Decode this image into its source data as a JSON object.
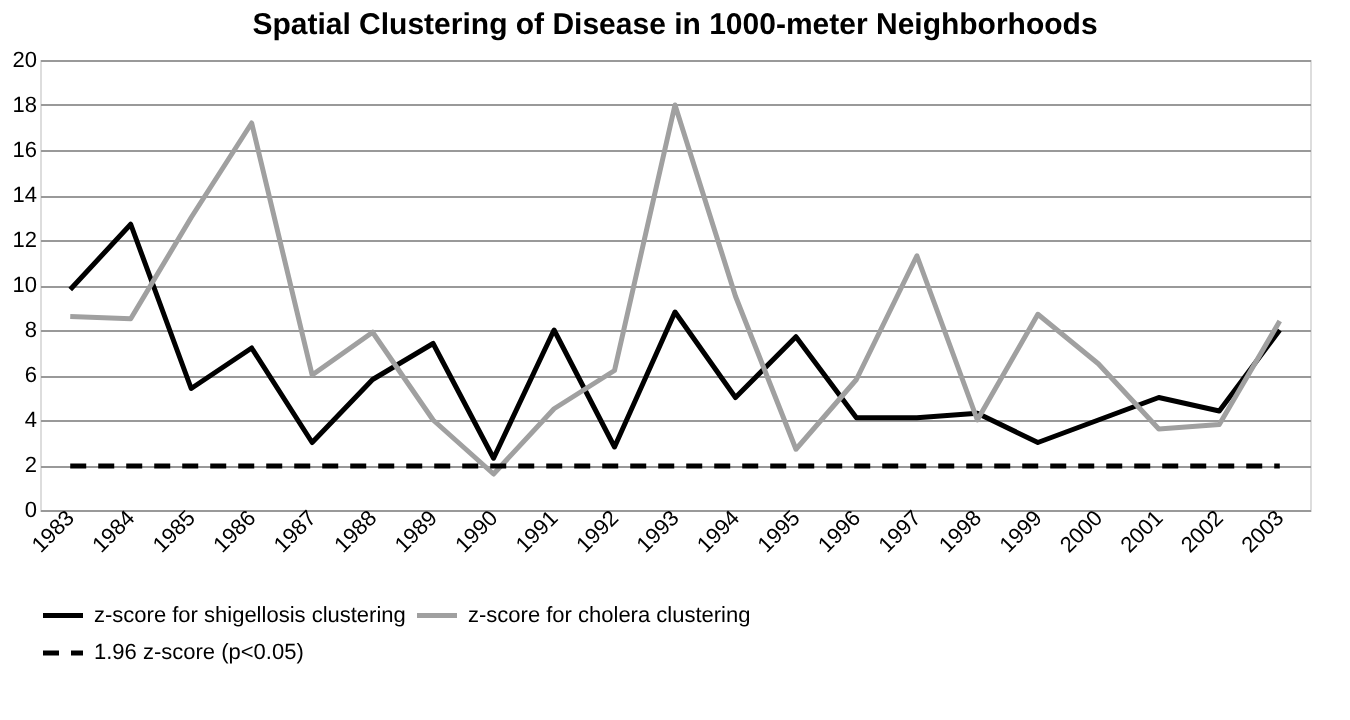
{
  "chart_data": {
    "type": "line",
    "title": "Spatial Clustering of Disease in 1000-meter Neighborhoods",
    "categories": [
      "1983",
      "1984",
      "1985",
      "1986",
      "1987",
      "1988",
      "1989",
      "1990",
      "1991",
      "1992",
      "1993",
      "1994",
      "1995",
      "1996",
      "1997",
      "1998",
      "1999",
      "2000",
      "2001",
      "2002",
      "2003"
    ],
    "series": [
      {
        "name": "z-score for shigellosis clustering",
        "color": "#000000",
        "line_style": "solid",
        "values": [
          9.8,
          12.7,
          5.4,
          7.2,
          3.0,
          5.8,
          7.4,
          2.3,
          8.0,
          2.8,
          8.8,
          5.0,
          7.7,
          4.1,
          4.1,
          4.3,
          3.0,
          4.0,
          5.0,
          4.4,
          8.0
        ]
      },
      {
        "name": "z-score for cholera clustering",
        "color": "#a0a0a0",
        "line_style": "solid",
        "values": [
          8.6,
          8.5,
          13.0,
          17.2,
          6.0,
          7.9,
          4.0,
          1.6,
          4.5,
          6.2,
          18.0,
          9.5,
          2.7,
          5.8,
          11.3,
          4.0,
          8.7,
          6.5,
          3.6,
          3.8,
          8.4
        ]
      },
      {
        "name": "1.96 z-score (p<0.05)",
        "color": "#000000",
        "line_style": "dashed",
        "values": [
          1.96,
          1.96,
          1.96,
          1.96,
          1.96,
          1.96,
          1.96,
          1.96,
          1.96,
          1.96,
          1.96,
          1.96,
          1.96,
          1.96,
          1.96,
          1.96,
          1.96,
          1.96,
          1.96,
          1.96,
          1.96
        ]
      }
    ],
    "ylim": [
      0,
      20
    ],
    "yticks": [
      0,
      2,
      4,
      6,
      8,
      10,
      12,
      14,
      16,
      18,
      20
    ],
    "grid": "y",
    "legend": "bottom",
    "marker": "none"
  }
}
